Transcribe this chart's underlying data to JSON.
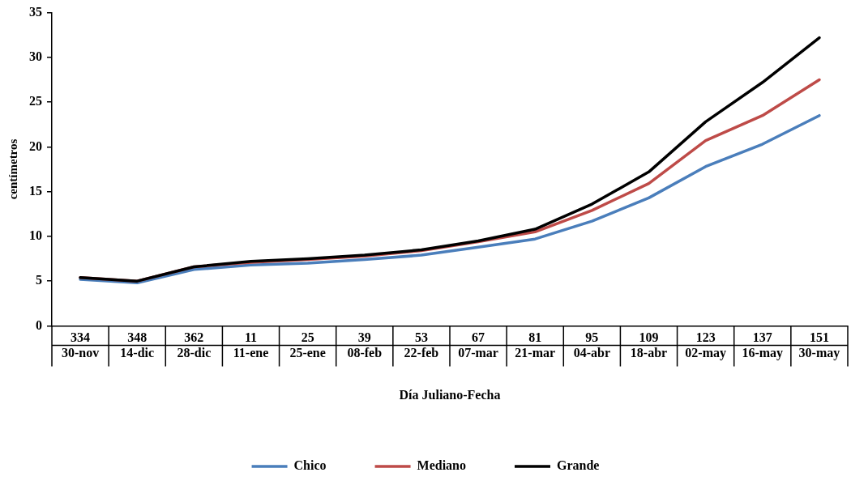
{
  "chart_data": {
    "type": "line",
    "xlabel": "Día Juliano-Fecha",
    "ylabel": "centímetros",
    "categories": [
      "334\n30-nov",
      "348\n14-dic",
      "362\n28-dic",
      "11\n11-ene",
      "25\n25-ene",
      "39\n08-feb",
      "53\n22-feb",
      "67\n07-mar",
      "81\n21-mar",
      "95\n04-abr",
      "109\n18-abr",
      "123\n02-may",
      "137\n16-may",
      "151\n30-may"
    ],
    "series": [
      {
        "name": "Chico",
        "color": "#4a7ebb",
        "values": [
          5.2,
          4.8,
          6.3,
          6.8,
          7.0,
          7.4,
          7.9,
          8.8,
          9.7,
          11.7,
          14.3,
          17.8,
          20.3,
          23.5
        ]
      },
      {
        "name": "Mediano",
        "color": "#be4b48",
        "values": [
          5.4,
          5.0,
          6.6,
          7.1,
          7.4,
          7.8,
          8.4,
          9.4,
          10.5,
          12.9,
          15.9,
          20.7,
          23.5,
          27.5
        ]
      },
      {
        "name": "Grande",
        "color": "#000000",
        "values": [
          5.4,
          5.0,
          6.6,
          7.2,
          7.5,
          7.9,
          8.5,
          9.5,
          10.8,
          13.6,
          17.2,
          22.8,
          27.2,
          32.2
        ]
      }
    ],
    "ylim": [
      0,
      35
    ],
    "yticks": [
      0,
      5,
      10,
      15,
      20,
      25,
      30,
      35
    ],
    "grid": false,
    "legend": "bottom",
    "marker": "none",
    "line_style": "solid"
  }
}
